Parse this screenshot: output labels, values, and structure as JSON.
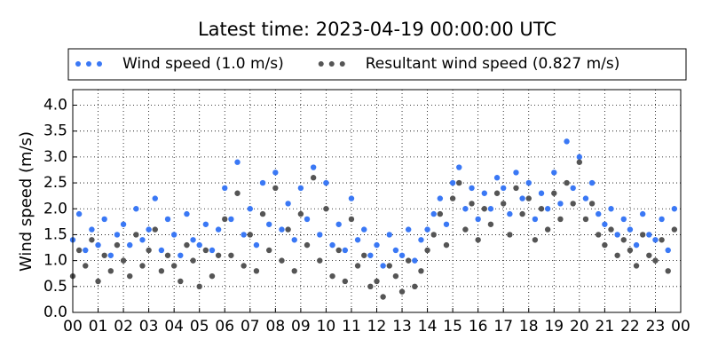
{
  "chart_data": {
    "type": "scatter",
    "title": "Latest time: 2023-04-19 00:00:00 UTC",
    "y_label": "Wind speed (m/s)",
    "legend": "top",
    "grid": true,
    "xlim": [
      0,
      24
    ],
    "ylim": [
      0,
      4.3
    ],
    "xticks": [
      {
        "value": 0,
        "label": "00"
      },
      {
        "value": 1,
        "label": "01"
      },
      {
        "value": 2,
        "label": "02"
      },
      {
        "value": 3,
        "label": "03"
      },
      {
        "value": 4,
        "label": "04"
      },
      {
        "value": 5,
        "label": "05"
      },
      {
        "value": 6,
        "label": "06"
      },
      {
        "value": 7,
        "label": "07"
      },
      {
        "value": 8,
        "label": "08"
      },
      {
        "value": 9,
        "label": "09"
      },
      {
        "value": 10,
        "label": "10"
      },
      {
        "value": 11,
        "label": "11"
      },
      {
        "value": 12,
        "label": "12"
      },
      {
        "value": 13,
        "label": "13"
      },
      {
        "value": 14,
        "label": "14"
      },
      {
        "value": 15,
        "label": "15"
      },
      {
        "value": 16,
        "label": "16"
      },
      {
        "value": 17,
        "label": "17"
      },
      {
        "value": 18,
        "label": "18"
      },
      {
        "value": 19,
        "label": "19"
      },
      {
        "value": 20,
        "label": "20"
      },
      {
        "value": 21,
        "label": "21"
      },
      {
        "value": 22,
        "label": "22"
      },
      {
        "value": 23,
        "label": "23"
      },
      {
        "value": 24,
        "label": "00"
      }
    ],
    "yticks": [
      {
        "value": 0,
        "label": "0.0"
      },
      0.5,
      {
        "value": 1,
        "label": "1.0"
      },
      1.5,
      {
        "value": 2,
        "label": "2.0"
      },
      2.5,
      {
        "value": 3,
        "label": "3.0"
      },
      3.5,
      {
        "value": 4,
        "label": "4.0"
      }
    ],
    "x": [
      0,
      0.25,
      0.5,
      0.75,
      1,
      1.25,
      1.5,
      1.75,
      2,
      2.25,
      2.5,
      2.75,
      3,
      3.25,
      3.5,
      3.75,
      4,
      4.25,
      4.5,
      4.75,
      5,
      5.25,
      5.5,
      5.75,
      6,
      6.25,
      6.5,
      6.75,
      7,
      7.25,
      7.5,
      7.75,
      8,
      8.25,
      8.5,
      8.75,
      9,
      9.25,
      9.5,
      9.75,
      10,
      10.25,
      10.5,
      10.75,
      11,
      11.25,
      11.5,
      11.75,
      12,
      12.25,
      12.5,
      12.75,
      13,
      13.25,
      13.5,
      13.75,
      14,
      14.25,
      14.5,
      14.75,
      15,
      15.25,
      15.5,
      15.75,
      16,
      16.25,
      16.5,
      16.75,
      17,
      17.25,
      17.5,
      17.75,
      18,
      18.25,
      18.5,
      18.75,
      19,
      19.25,
      19.5,
      19.75,
      20,
      20.25,
      20.5,
      20.75,
      21,
      21.25,
      21.5,
      21.75,
      22,
      22.25,
      22.5,
      22.75,
      23,
      23.25,
      23.5,
      23.75
    ],
    "series": [
      {
        "name": "Wind speed (1.0 m/s)",
        "color": "#3a78f5",
        "values": [
          1.4,
          1.9,
          1.2,
          1.6,
          1.3,
          1.8,
          1.1,
          1.5,
          1.7,
          1.3,
          2.0,
          1.4,
          1.6,
          2.2,
          1.2,
          1.8,
          1.5,
          1.1,
          1.9,
          1.4,
          1.3,
          1.7,
          1.2,
          1.6,
          2.4,
          1.8,
          2.9,
          1.5,
          2.0,
          1.3,
          2.5,
          1.7,
          2.7,
          1.6,
          2.1,
          1.4,
          2.4,
          1.8,
          2.8,
          1.5,
          2.5,
          1.3,
          1.7,
          1.2,
          2.2,
          1.4,
          1.6,
          1.1,
          1.3,
          0.9,
          1.5,
          1.2,
          1.1,
          1.6,
          1.0,
          1.4,
          1.6,
          1.9,
          2.2,
          1.7,
          2.5,
          2.8,
          2.0,
          2.4,
          1.8,
          2.3,
          2.0,
          2.6,
          2.4,
          1.9,
          2.7,
          2.2,
          2.5,
          1.8,
          2.3,
          2.0,
          2.7,
          2.1,
          3.3,
          2.4,
          3.0,
          2.2,
          2.5,
          1.9,
          1.7,
          2.0,
          1.5,
          1.8,
          1.6,
          1.3,
          1.9,
          1.5,
          1.4,
          1.8,
          1.2,
          2.0
        ]
      },
      {
        "name": "Resultant wind speed (0.827 m/s)",
        "color": "#555555",
        "values": [
          0.7,
          1.2,
          0.9,
          1.4,
          0.6,
          1.1,
          0.8,
          1.3,
          1.0,
          0.7,
          1.5,
          0.9,
          1.2,
          1.6,
          0.8,
          1.1,
          0.9,
          0.6,
          1.3,
          1.0,
          0.5,
          1.2,
          0.7,
          1.1,
          1.8,
          1.1,
          2.3,
          0.9,
          1.5,
          0.8,
          1.9,
          1.2,
          2.4,
          1.0,
          1.6,
          0.8,
          1.9,
          1.3,
          2.6,
          1.0,
          2.0,
          0.7,
          1.2,
          0.6,
          1.8,
          0.9,
          1.1,
          0.5,
          0.6,
          0.3,
          0.9,
          0.7,
          0.4,
          1.0,
          0.5,
          0.8,
          1.2,
          1.5,
          1.9,
          1.3,
          2.2,
          2.5,
          1.6,
          2.1,
          1.4,
          2.0,
          1.7,
          2.3,
          2.1,
          1.5,
          2.4,
          1.9,
          2.2,
          1.4,
          2.0,
          1.6,
          2.3,
          1.8,
          2.5,
          2.1,
          2.9,
          1.8,
          2.1,
          1.5,
          1.3,
          1.6,
          1.1,
          1.4,
          1.2,
          0.9,
          1.5,
          1.1,
          1.0,
          1.4,
          0.8,
          1.6
        ]
      }
    ]
  }
}
